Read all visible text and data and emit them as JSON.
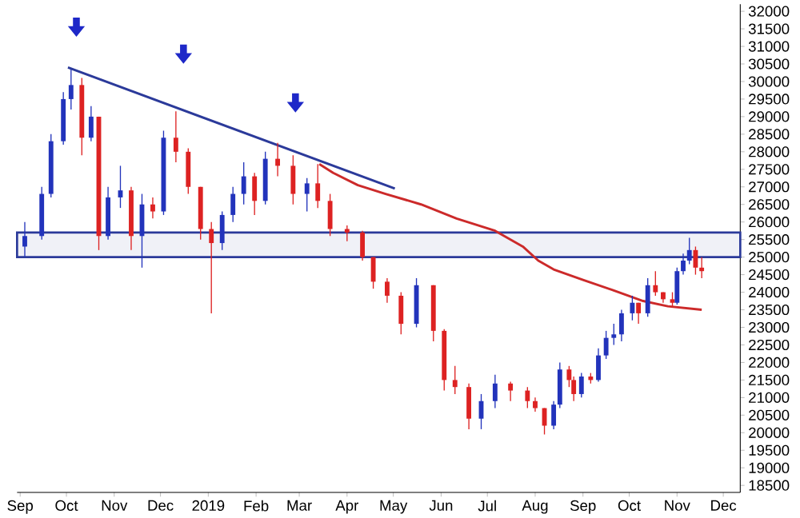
{
  "chart_data": {
    "type": "candlestick",
    "x": [
      "2018-09-04",
      "2018-09-15",
      "2018-09-21",
      "2018-09-29",
      "2018-10-04",
      "2018-10-11",
      "2018-10-17",
      "2018-10-22",
      "2018-10-28",
      "2018-11-05",
      "2018-11-12",
      "2018-11-19",
      "2018-11-26",
      "2018-12-03",
      "2018-12-11",
      "2018-12-19",
      "2018-12-27",
      "2019-01-03",
      "2019-01-10",
      "2019-01-17",
      "2019-01-24",
      "2019-01-31",
      "2019-02-07",
      "2019-02-15",
      "2019-02-25",
      "2019-03-06",
      "2019-03-13",
      "2019-03-21",
      "2019-04-01",
      "2019-04-11",
      "2019-04-18",
      "2019-04-27",
      "2019-05-06",
      "2019-05-16",
      "2019-05-27",
      "2019-06-03",
      "2019-06-10",
      "2019-06-19",
      "2019-06-27",
      "2019-07-06",
      "2019-07-16",
      "2019-07-27",
      "2019-08-01",
      "2019-08-07",
      "2019-08-13",
      "2019-08-17",
      "2019-08-23",
      "2019-08-26",
      "2019-08-31",
      "2019-09-06",
      "2019-09-11",
      "2019-09-16",
      "2019-09-21",
      "2019-09-26",
      "2019-10-03",
      "2019-10-07",
      "2019-10-13",
      "2019-10-18",
      "2019-10-23",
      "2019-10-29",
      "2019-11-01",
      "2019-11-05",
      "2019-11-09",
      "2019-11-13",
      "2019-11-17"
    ],
    "ohlc": [
      [
        25300,
        26000,
        25000,
        25600
      ],
      [
        25600,
        27000,
        25500,
        26800
      ],
      [
        26800,
        28500,
        26700,
        28300
      ],
      [
        28300,
        29700,
        28200,
        29500
      ],
      [
        29500,
        30350,
        29200,
        29900
      ],
      [
        29900,
        30100,
        27900,
        28400
      ],
      [
        28400,
        29300,
        28300,
        29000
      ],
      [
        29000,
        29000,
        25200,
        25600
      ],
      [
        25600,
        27000,
        25500,
        26700
      ],
      [
        26700,
        27600,
        26400,
        26900
      ],
      [
        26900,
        27000,
        25200,
        25600
      ],
      [
        25600,
        26800,
        24700,
        26500
      ],
      [
        26500,
        26700,
        26100,
        26300
      ],
      [
        26300,
        28600,
        26200,
        28400
      ],
      [
        28400,
        29150,
        27700,
        28000
      ],
      [
        28000,
        28100,
        26800,
        27000
      ],
      [
        27000,
        27000,
        25500,
        25800
      ],
      [
        25800,
        26000,
        23400,
        25400
      ],
      [
        25400,
        26300,
        25200,
        26200
      ],
      [
        26200,
        27000,
        26000,
        26800
      ],
      [
        26800,
        27700,
        26500,
        27300
      ],
      [
        27300,
        27400,
        26200,
        26600
      ],
      [
        26600,
        28000,
        26500,
        27800
      ],
      [
        27800,
        28250,
        27300,
        27600
      ],
      [
        27600,
        27900,
        26500,
        26800
      ],
      [
        26800,
        27250,
        26300,
        27100
      ],
      [
        27100,
        27650,
        26400,
        26600
      ],
      [
        26600,
        26800,
        25600,
        25800
      ],
      [
        25800,
        25900,
        25450,
        25700
      ],
      [
        25700,
        25750,
        24900,
        25000
      ],
      [
        25000,
        25000,
        24100,
        24300
      ],
      [
        24300,
        24400,
        23700,
        23900
      ],
      [
        23900,
        24000,
        22800,
        23100
      ],
      [
        23100,
        24400,
        23000,
        24200
      ],
      [
        24200,
        24200,
        22600,
        22900
      ],
      [
        22900,
        22950,
        21200,
        21500
      ],
      [
        21500,
        21900,
        21100,
        21300
      ],
      [
        21300,
        21400,
        20100,
        20400
      ],
      [
        20400,
        21100,
        20100,
        20900
      ],
      [
        20900,
        21650,
        20700,
        21400
      ],
      [
        21400,
        21450,
        20900,
        21200
      ],
      [
        21200,
        21300,
        20700,
        20900
      ],
      [
        20900,
        21000,
        20600,
        20700
      ],
      [
        20700,
        20700,
        19950,
        20200
      ],
      [
        20200,
        20900,
        20100,
        20800
      ],
      [
        20800,
        22000,
        20700,
        21800
      ],
      [
        21800,
        21900,
        21300,
        21500
      ],
      [
        21500,
        21600,
        20900,
        21100
      ],
      [
        21100,
        21700,
        21000,
        21600
      ],
      [
        21600,
        21700,
        21400,
        21500
      ],
      [
        21500,
        22400,
        21450,
        22200
      ],
      [
        22200,
        22900,
        22100,
        22700
      ],
      [
        22700,
        23100,
        22500,
        22800
      ],
      [
        22800,
        23500,
        22600,
        23400
      ],
      [
        23400,
        23900,
        23200,
        23700
      ],
      [
        23700,
        23700,
        23100,
        23400
      ],
      [
        23400,
        24400,
        23300,
        24200
      ],
      [
        24200,
        24600,
        23900,
        24000
      ],
      [
        24000,
        24000,
        23700,
        23800
      ],
      [
        23800,
        24000,
        23600,
        23700
      ],
      [
        23700,
        24700,
        23650,
        24600
      ],
      [
        24600,
        25100,
        24500,
        24900
      ],
      [
        24900,
        25550,
        24800,
        25200
      ],
      [
        25200,
        25300,
        24500,
        24700
      ],
      [
        24700,
        25000,
        24400,
        24600
      ]
    ],
    "colors": [
      "#2233bb",
      "#2233bb",
      "#2233bb",
      "#2233bb",
      "#2233bb",
      "#dd2222",
      "#2233bb",
      "#dd2222",
      "#2233bb",
      "#2233bb",
      "#dd2222",
      "#2233bb",
      "#dd2222",
      "#2233bb",
      "#dd2222",
      "#dd2222",
      "#dd2222",
      "#dd2222",
      "#2233bb",
      "#2233bb",
      "#2233bb",
      "#dd2222",
      "#2233bb",
      "#dd2222",
      "#dd2222",
      "#2233bb",
      "#dd2222",
      "#dd2222",
      "#dd2222",
      "#dd2222",
      "#dd2222",
      "#dd2222",
      "#dd2222",
      "#2233bb",
      "#dd2222",
      "#dd2222",
      "#dd2222",
      "#dd2222",
      "#2233bb",
      "#2233bb",
      "#dd2222",
      "#dd2222",
      "#dd2222",
      "#dd2222",
      "#2233bb",
      "#2233bb",
      "#dd2222",
      "#dd2222",
      "#2233bb",
      "#dd2222",
      "#2233bb",
      "#2233bb",
      "#2233bb",
      "#2233bb",
      "#2233bb",
      "#dd2222",
      "#2233bb",
      "#dd2222",
      "#dd2222",
      "#dd2222",
      "#2233bb",
      "#2233bb",
      "#2233bb",
      "#dd2222",
      "#dd2222"
    ],
    "series": [
      {
        "type": "line",
        "color": "#cc2a2a",
        "x": [
          "2019-03-14",
          "2019-03-23",
          "2019-04-08",
          "2019-04-26",
          "2019-05-19",
          "2019-06-11",
          "2019-07-06",
          "2019-07-24",
          "2019-08-03",
          "2019-08-13",
          "2019-09-01",
          "2019-09-21",
          "2019-10-10",
          "2019-10-26",
          "2019-11-17"
        ],
        "values": [
          27650,
          27400,
          27050,
          26800,
          26500,
          26100,
          25750,
          25300,
          24900,
          24650,
          24350,
          24050,
          23750,
          23600,
          23500
        ]
      },
      {
        "type": "line",
        "color": "#2b3a9a",
        "x": [
          "2018-10-02",
          "2019-05-02"
        ],
        "values": [
          30400,
          26950
        ]
      }
    ],
    "bands": [
      {
        "axis": "y",
        "from": 25000,
        "to": 25700,
        "color": "#2b3a9a"
      }
    ],
    "xlim": [
      "2018-08-30",
      "2019-12-12"
    ],
    "xticks": [
      {
        "value": "2018-09-01",
        "label": "Sep"
      },
      {
        "value": "2018-10-01",
        "label": "Oct"
      },
      {
        "value": "2018-11-01",
        "label": "Nov"
      },
      {
        "value": "2018-12-01",
        "label": "Dec"
      },
      {
        "value": "2019-01-01",
        "label": "2019"
      },
      {
        "value": "2019-02-01",
        "label": "Feb"
      },
      {
        "value": "2019-03-01",
        "label": "Mar"
      },
      {
        "value": "2019-04-01",
        "label": "Apr"
      },
      {
        "value": "2019-05-01",
        "label": "May"
      },
      {
        "value": "2019-06-01",
        "label": "Jun"
      },
      {
        "value": "2019-07-01",
        "label": "Jul"
      },
      {
        "value": "2019-08-01",
        "label": "Aug"
      },
      {
        "value": "2019-09-01",
        "label": "Sep"
      },
      {
        "value": "2019-10-01",
        "label": "Oct"
      },
      {
        "value": "2019-11-01",
        "label": "Nov"
      },
      {
        "value": "2019-12-01",
        "label": "Dec"
      }
    ],
    "ylim": [
      18300,
      32200
    ],
    "yticks": [
      18500,
      19000,
      19500,
      20000,
      20500,
      21000,
      21500,
      22000,
      22500,
      23000,
      23500,
      24000,
      24500,
      25000,
      25500,
      26000,
      26500,
      27000,
      27500,
      28000,
      28500,
      29000,
      29500,
      30000,
      30500,
      31000,
      31500,
      32000
    ]
  }
}
